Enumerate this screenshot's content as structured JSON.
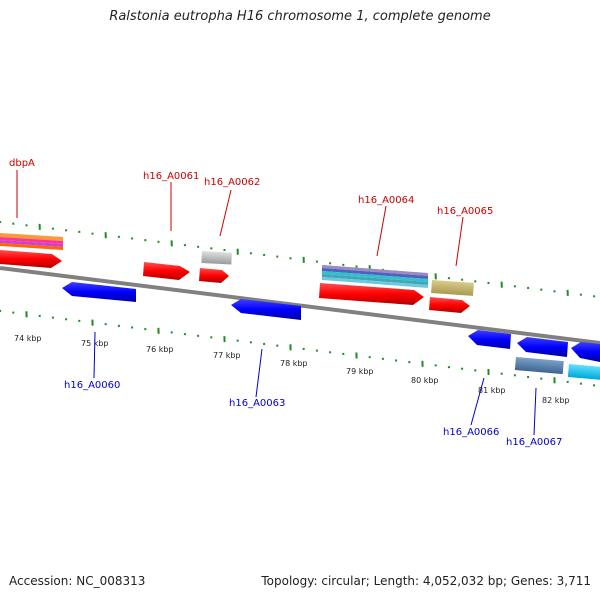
{
  "title": "Ralstonia eutropha H16 chromosome 1, complete genome",
  "footer": {
    "accession": "Accession: NC_008313",
    "stats": "Topology: circular; Length: 4,052,032 bp; Genes: 3,711"
  },
  "colors": {
    "backbone": "#808080",
    "forward_gene": "#ff0000",
    "reverse_gene": "#0000ff",
    "forward_label": "#cc0000",
    "reverse_label": "#0000cc",
    "tick": "#228b22"
  },
  "ruler": [
    "74 kbp",
    "75 kbp",
    "76 kbp",
    "77 kbp",
    "78 kbp",
    "79 kbp",
    "80 kbp",
    "81 kbp",
    "82 kbp"
  ],
  "gene_labels": {
    "forward": [
      "dbpA",
      "h16_A0061",
      "h16_A0062",
      "h16_A0064",
      "h16_A0065"
    ],
    "reverse": [
      "h16_A0060",
      "h16_A0063",
      "h16_A0066",
      "h16_A0067"
    ]
  }
}
